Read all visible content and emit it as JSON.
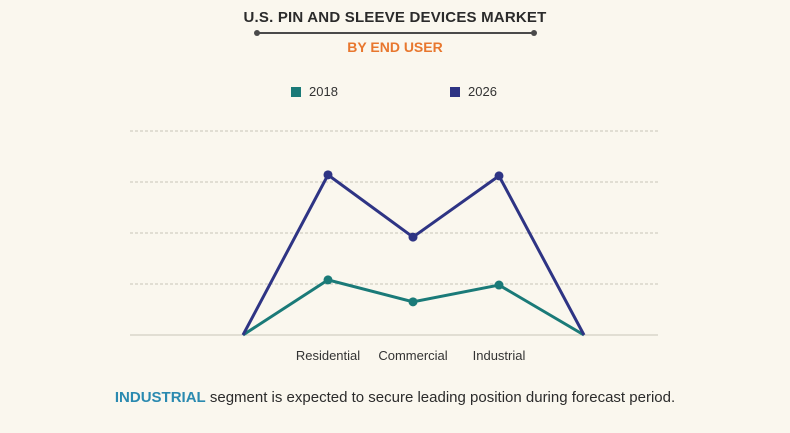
{
  "header": {
    "title": "U.S. PIN AND SLEEVE DEVICES MARKET",
    "subtitle": "BY END USER"
  },
  "footer": {
    "highlight": "INDUSTRIAL",
    "text": " segment is expected to secure leading position during forecast period."
  },
  "colors": {
    "series_2018": "#1a7a78",
    "series_2026": "#2e3484",
    "accent": "#e8772e",
    "highlight": "#2a8ab0"
  },
  "chart_data": {
    "type": "line",
    "title": "U.S. PIN AND SLEEVE DEVICES MARKET",
    "subtitle": "BY END USER",
    "categories": [
      "",
      "Residential",
      "Commercial",
      "Industrial",
      ""
    ],
    "tick_labels": [
      "Residential",
      "Commercial",
      "Industrial"
    ],
    "series": [
      {
        "name": "2018",
        "color": "#1a7a78",
        "values": [
          0,
          1.08,
          0.65,
          0.98,
          0
        ]
      },
      {
        "name": "2026",
        "color": "#2e3484",
        "values": [
          0,
          3.14,
          1.92,
          3.12,
          0
        ]
      }
    ],
    "ylim": [
      0,
      4
    ],
    "grid": true,
    "legend_position": "top-center",
    "xlabel": "",
    "ylabel": ""
  }
}
